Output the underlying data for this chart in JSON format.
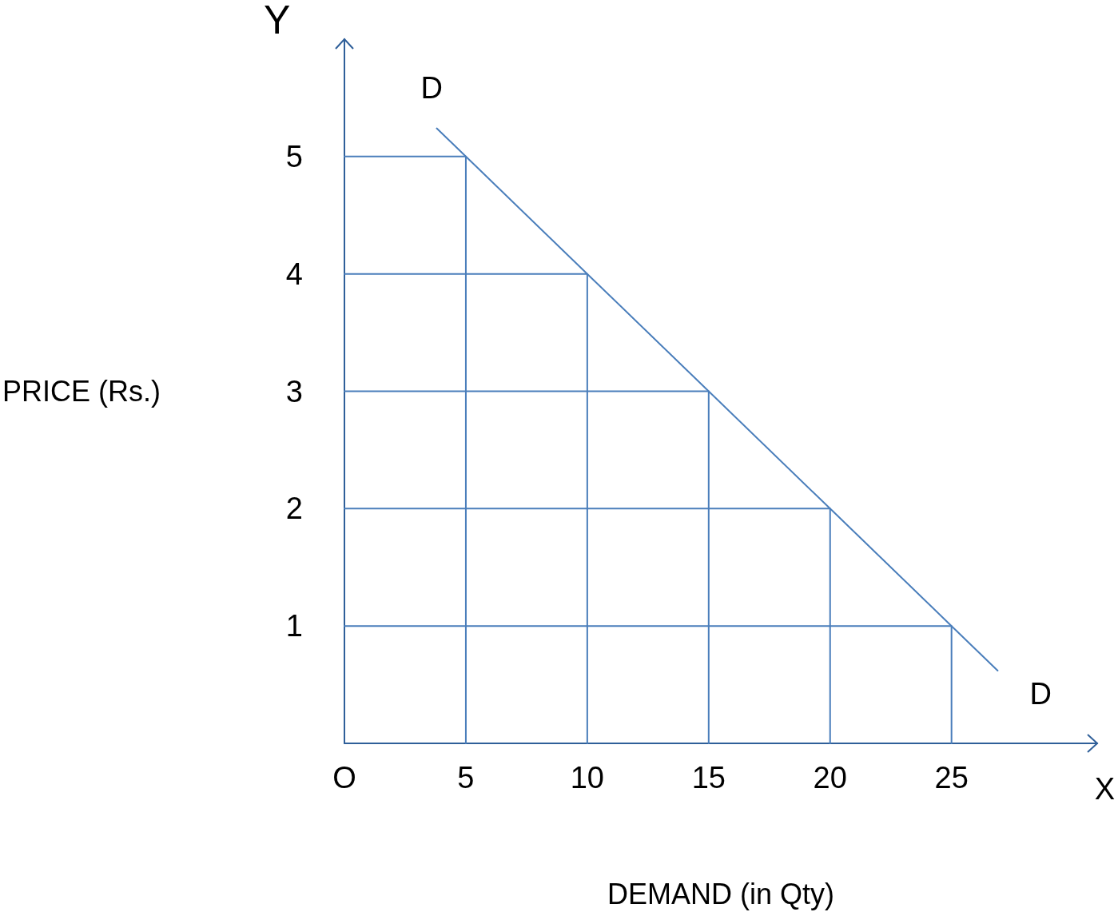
{
  "chart_data": {
    "type": "line",
    "xlabel": "DEMAND (in Qty)",
    "ylabel": "PRICE (Rs.)",
    "xlim": [
      0,
      31
    ],
    "ylim": [
      0,
      6
    ],
    "xticks": [
      {
        "value": 0,
        "label": "O"
      },
      5,
      10,
      15,
      20,
      25
    ],
    "yticks": [
      1,
      2,
      3,
      4,
      5
    ],
    "grid": false,
    "marker": "none",
    "line_style": "solid",
    "series": [
      {
        "name": "D",
        "color": "#4a7ebb",
        "x": [
          3.8,
          5,
          10,
          15,
          20,
          25,
          26.9
        ],
        "values": [
          5.24,
          5,
          4,
          3,
          2,
          1,
          0.62
        ]
      },
      {
        "color": "#4a7ebb",
        "x": [
          0,
          5,
          5
        ],
        "values": [
          5,
          5,
          0
        ]
      },
      {
        "color": "#4a7ebb",
        "x": [
          0,
          10,
          10
        ],
        "values": [
          4,
          4,
          0
        ]
      },
      {
        "color": "#4a7ebb",
        "x": [
          0,
          15,
          15
        ],
        "values": [
          3,
          3,
          0
        ]
      },
      {
        "color": "#4a7ebb",
        "x": [
          0,
          20,
          20
        ],
        "values": [
          2,
          2,
          0
        ]
      },
      {
        "color": "#4a7ebb",
        "x": [
          0,
          25,
          25
        ],
        "values": [
          1,
          1,
          0
        ]
      }
    ],
    "annotations": [
      "Y",
      "X"
    ]
  }
}
